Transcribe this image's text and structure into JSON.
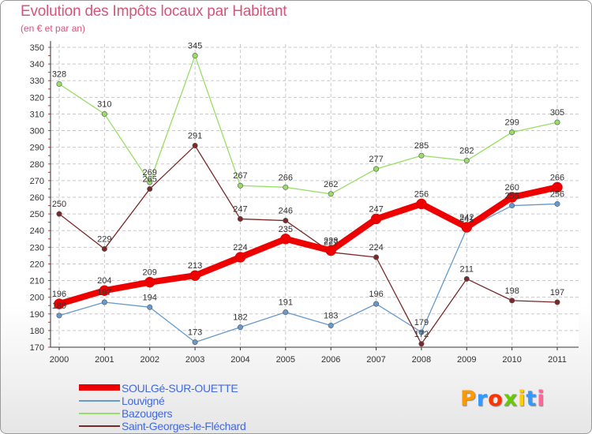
{
  "title": "Evolution des Impôts locaux par Habitant",
  "subtitle": "(en € et par an)",
  "logo": {
    "text": "Proxiti",
    "letters": [
      "P",
      "r",
      "o",
      "x",
      "i",
      "t",
      "i"
    ],
    "colors": [
      "#ff9900",
      "#3399ff",
      "#ff3300",
      "#66cc00",
      "#ffcc00",
      "#3399ff",
      "#ff6699"
    ]
  },
  "chart_data": {
    "type": "line",
    "title": "Evolution des Impôts locaux par Habitant",
    "ylabel": "(en € et par an)",
    "xlabel": "",
    "categories": [
      "2000",
      "2001",
      "2002",
      "2003",
      "2004",
      "2005",
      "2006",
      "2007",
      "2008",
      "2009",
      "2010",
      "2011"
    ],
    "ylim": [
      170,
      350
    ],
    "yticks": [
      170,
      180,
      190,
      200,
      210,
      220,
      230,
      240,
      250,
      260,
      270,
      280,
      290,
      300,
      310,
      320,
      330,
      340,
      350
    ],
    "grid": true,
    "series": [
      {
        "name": "SOULGé-SUR-OUETTE",
        "color": "#ee0000",
        "thick": true,
        "values": [
          196,
          204,
          209,
          213,
          224,
          235,
          228,
          247,
          256,
          242,
          260,
          266
        ]
      },
      {
        "name": "Louvigné",
        "color": "#6699cc",
        "thick": false,
        "values": [
          189,
          197,
          194,
          173,
          182,
          191,
          183,
          196,
          179,
          241,
          255,
          256
        ]
      },
      {
        "name": "Bazougers",
        "color": "#99dd66",
        "thick": false,
        "values": [
          328,
          310,
          269,
          345,
          267,
          266,
          262,
          277,
          285,
          282,
          299,
          305
        ]
      },
      {
        "name": "Saint-Georges-le-Fléchard",
        "color": "#7a2828",
        "thick": false,
        "values": [
          250,
          229,
          265,
          291,
          247,
          246,
          227,
          224,
          172,
          211,
          198,
          197
        ]
      }
    ]
  }
}
